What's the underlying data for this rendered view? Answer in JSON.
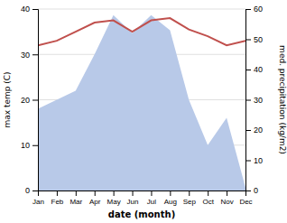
{
  "chart_data": {
    "type": "line",
    "xlabel": "date (month)",
    "ylabel": "max temp (C)",
    "y2label": "med. precipitation (kg/m2)",
    "categories": [
      "Jan",
      "Feb",
      "Mar",
      "Apr",
      "May",
      "Jun",
      "Jul",
      "Aug",
      "Sep",
      "Oct",
      "Nov",
      "Dec"
    ],
    "series": [
      {
        "type": "line",
        "color": "#c0504d",
        "values": [
          32,
          33,
          35,
          37,
          37.5,
          35,
          37.5,
          38,
          35.5,
          34,
          32,
          33
        ]
      },
      {
        "type": "area",
        "color": "#b8c9e8",
        "axis": "y2",
        "values": [
          27,
          30,
          33,
          45,
          58,
          52,
          58,
          53,
          30,
          15,
          24,
          1
        ]
      }
    ],
    "ylim": [
      0,
      40
    ],
    "yticks": [
      0,
      10,
      20,
      30,
      40
    ],
    "y2lim": [
      0,
      60
    ],
    "y2ticks": [
      0,
      10,
      20,
      30,
      40,
      50,
      60
    ],
    "grid": true
  }
}
